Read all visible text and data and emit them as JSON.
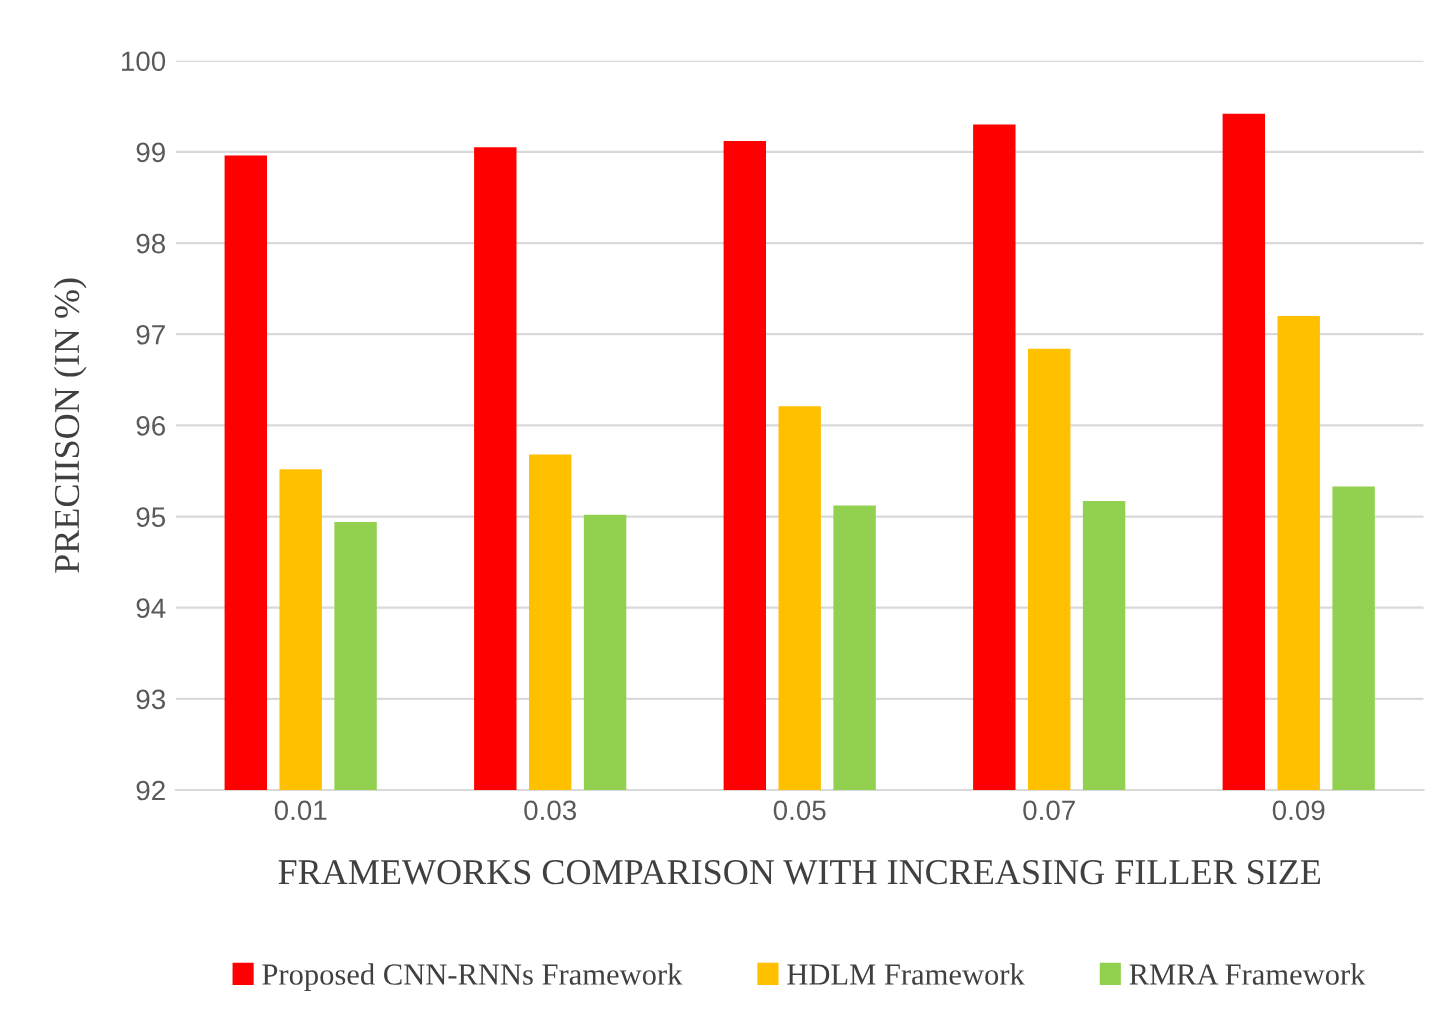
{
  "chart_data": {
    "type": "bar",
    "xlabel": "FRAMEWORKS COMPARISON WITH INCREASING FILLER SIZE",
    "ylabel": "PRECIISON (IN %)",
    "categories": [
      "0.01",
      "0.03",
      "0.05",
      "0.07",
      "0.09"
    ],
    "series": [
      {
        "name": "Proposed CNN-RNNs Framework",
        "color": "#ff0000",
        "values": [
          98.96,
          99.05,
          99.12,
          99.3,
          99.42
        ]
      },
      {
        "name": "HDLM Framework",
        "color": "#ffc000",
        "values": [
          95.52,
          95.68,
          96.21,
          96.84,
          97.2
        ]
      },
      {
        "name": "RMRA Framework",
        "color": "#92d050",
        "values": [
          94.94,
          95.02,
          95.12,
          95.17,
          95.33
        ]
      }
    ],
    "ylim": [
      92,
      100
    ],
    "yticks": [
      92,
      93,
      94,
      95,
      96,
      97,
      98,
      99,
      100
    ],
    "grid": "y",
    "legend": "bottom"
  }
}
